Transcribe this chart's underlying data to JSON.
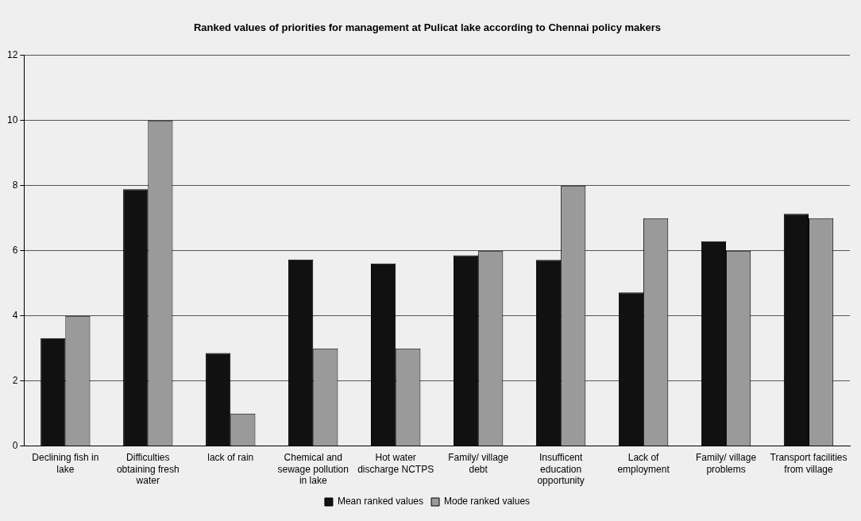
{
  "chart_data": {
    "type": "bar",
    "title": "Ranked values of priorities for management at Pulicat lake according to Chennai policy makers",
    "categories": [
      "Declining fish in lake",
      "Difficulties obtaining fresh water",
      "lack of rain",
      "Chemical and sewage pollution in lake",
      "Hot water discharge NCTPS",
      "Family/ village debt",
      "Insufficent education opportunity",
      "Lack of employment",
      "Family/ village problems",
      "Transport facilities from village"
    ],
    "series": [
      {
        "name": "Mean ranked values",
        "color": "#111111",
        "values": [
          3.32,
          7.89,
          2.86,
          5.73,
          5.61,
          5.86,
          5.72,
          4.72,
          6.29,
          7.13
        ]
      },
      {
        "name": "Mode ranked values",
        "color": "#9a9a9a",
        "values": [
          4,
          10,
          1,
          3,
          3,
          6,
          8,
          7,
          6,
          7
        ]
      }
    ],
    "ylim": [
      0,
      12
    ],
    "yticks": [
      0,
      2,
      4,
      6,
      8,
      10,
      12
    ],
    "grid": "y",
    "legend": "bottom"
  }
}
